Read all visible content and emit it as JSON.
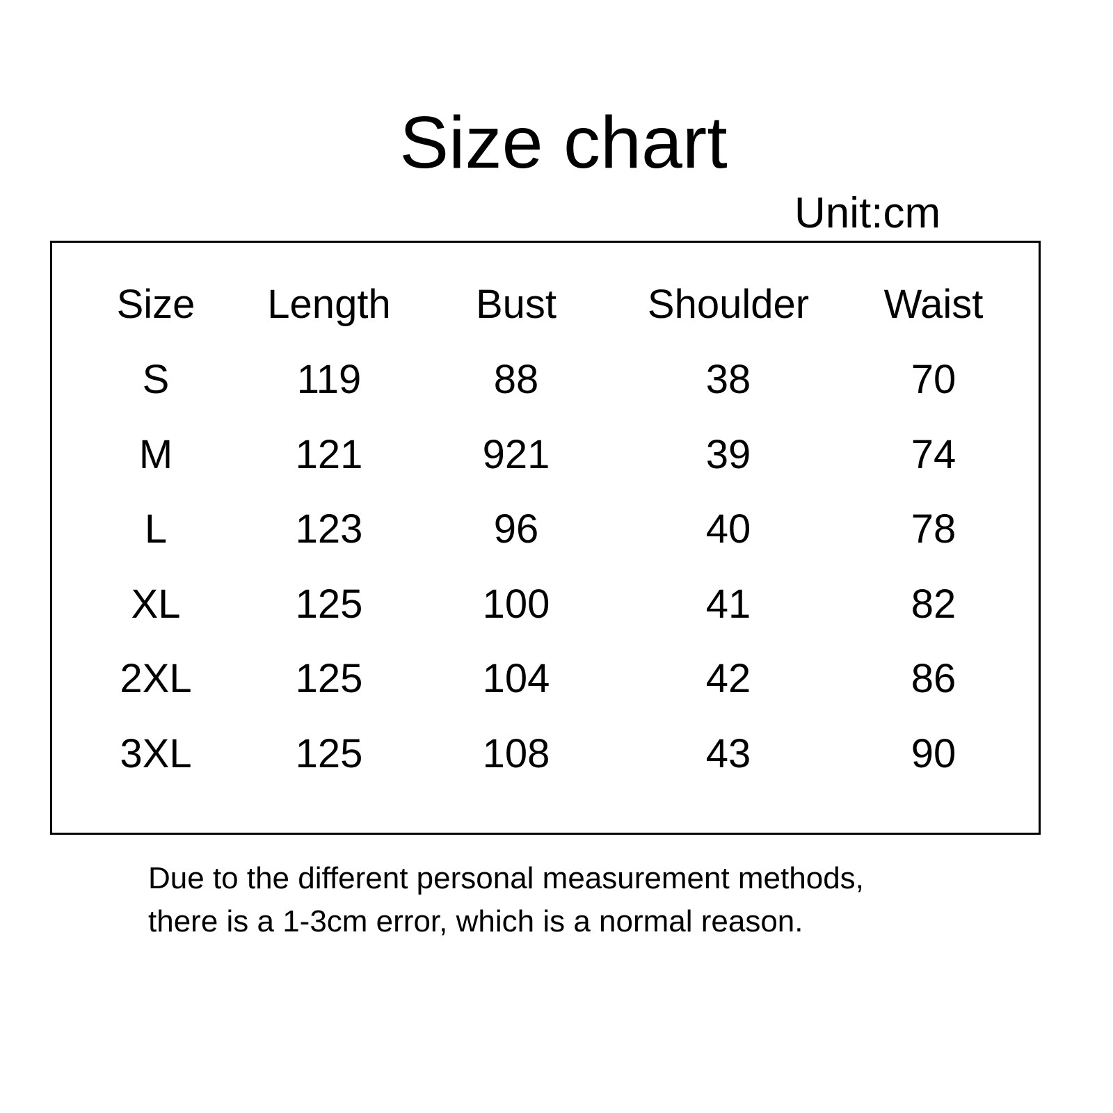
{
  "title": "Size chart",
  "unit": "Unit:cm",
  "table": {
    "headers": [
      "Size",
      "Length",
      "Bust",
      "Shoulder",
      "Waist"
    ],
    "rows": [
      [
        "S",
        "119",
        "88",
        "38",
        "70"
      ],
      [
        "M",
        "121",
        "921",
        "39",
        "74"
      ],
      [
        "L",
        "123",
        "96",
        "40",
        "78"
      ],
      [
        "XL",
        "125",
        "100",
        "41",
        "82"
      ],
      [
        "2XL",
        "125",
        "104",
        "42",
        "86"
      ],
      [
        "3XL",
        "125",
        "108",
        "43",
        "90"
      ]
    ]
  },
  "note": {
    "line1": "Due to the different personal measurement methods,",
    "line2": "there is a 1-3cm error, which is a normal reason."
  }
}
